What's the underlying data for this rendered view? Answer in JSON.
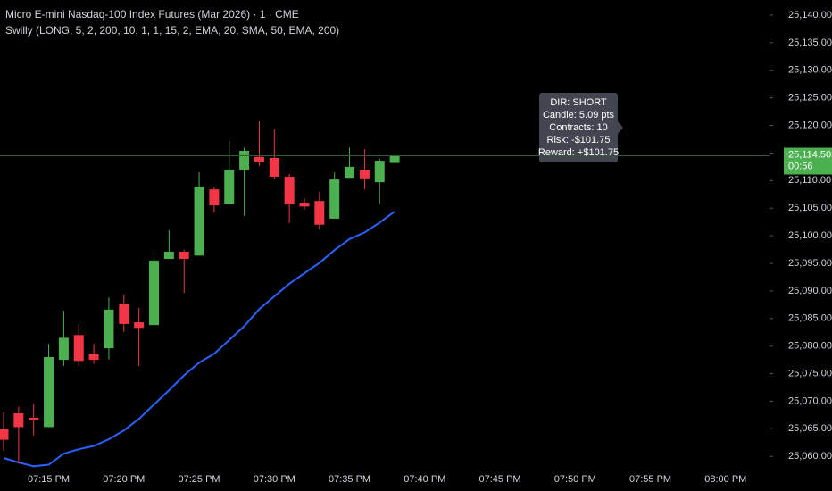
{
  "chart_data": {
    "type": "candlestick",
    "title": "Micro E-mini Nasdaq-100 Index Futures (Mar 2026) · 1 · CME",
    "subtitle": "Swilly (LONG, 5, 2, 200, 10, 1, 1, 15, 2, EMA, 20, SMA, 50, EMA, 200)",
    "categories": [
      null,
      null,
      null,
      "07:15 PM",
      null,
      null,
      null,
      null,
      "07:20 PM",
      null,
      null,
      null,
      null,
      "07:25 PM",
      null,
      null,
      null,
      null,
      "07:30 PM",
      null,
      null,
      null,
      null,
      "07:35 PM",
      null,
      null,
      null,
      null,
      "07:40 PM",
      null,
      null,
      null,
      null,
      "07:45 PM",
      null,
      null,
      null,
      null,
      "07:50 PM",
      null,
      null,
      null,
      null,
      "07:55 PM",
      null,
      null,
      null,
      null,
      "08:00 PM",
      null,
      null
    ],
    "open": [
      25065,
      25067.8,
      25067,
      25065.3,
      25077.5,
      25082,
      25078.6,
      25079.6,
      25087.7,
      25084.3,
      25083.8,
      25095.8,
      25097.1,
      25096.4,
      25108.4,
      25105.8,
      25112,
      25114.3,
      25114.1,
      25110.7,
      25106,
      25106.3,
      25103.1,
      25110.5,
      25112,
      25109.7,
      25113.2,
      null,
      null,
      null,
      null,
      null,
      null,
      null,
      null,
      null,
      null,
      null,
      null,
      null,
      null,
      null,
      null,
      null,
      null,
      null,
      null,
      null,
      null,
      null,
      null
    ],
    "high": [
      25068,
      25069,
      25069.5,
      25080.4,
      25086.4,
      25084,
      25080.4,
      25088.8,
      25089.3,
      25086.9,
      25097,
      25101,
      25097.5,
      25111.5,
      25108.8,
      25117.2,
      25116,
      25120.7,
      25119.3,
      25111.2,
      25106.8,
      25108,
      25111.5,
      25116,
      25115.7,
      25114,
      25114.5,
      null,
      null,
      null,
      null,
      null,
      null,
      null,
      null,
      null,
      null,
      null,
      null,
      null,
      null,
      null,
      null,
      null,
      null,
      null,
      null,
      null,
      null,
      null,
      null
    ],
    "low": [
      25061,
      25058.7,
      25063.8,
      25065.3,
      25076.4,
      25076.4,
      25076.8,
      25077.6,
      25082.5,
      25076.4,
      25083.8,
      25095.8,
      25089.6,
      25096.4,
      25104.2,
      25105.8,
      25103.6,
      25112.7,
      25110.4,
      25102.3,
      25104.7,
      25101.1,
      25103.1,
      25110.5,
      25108.4,
      25105.8,
      25113.2,
      null,
      null,
      null,
      null,
      null,
      null,
      null,
      null,
      null,
      null,
      null,
      null,
      null,
      null,
      null,
      null,
      null,
      null,
      null,
      null,
      null,
      null,
      null,
      null
    ],
    "close": [
      25063,
      25065.3,
      25066.5,
      25078,
      25081.5,
      25077.3,
      25077.5,
      25086.6,
      25084,
      25083.3,
      25095.5,
      25097.1,
      25095.8,
      25108.9,
      25105.5,
      25112,
      25115.4,
      25113.4,
      25110.7,
      25105.7,
      25105.3,
      25102,
      25110.2,
      25112.5,
      25110.4,
      25113.6,
      25114.5,
      null,
      null,
      null,
      null,
      null,
      null,
      null,
      null,
      null,
      null,
      null,
      null,
      null,
      null,
      null,
      null,
      null,
      null,
      null,
      null,
      null,
      null,
      null,
      null
    ],
    "up_color": "#4caf50",
    "down_color": "#f23645",
    "series": [
      {
        "color": "#2962ff",
        "values": [
          25059.7,
          25058.9,
          25058.2,
          25058.5,
          25060.5,
          25061.3,
          25061.9,
          25063.1,
          25064.7,
          25066.8,
          25069.4,
          25072.0,
          25074.7,
          25077.0,
          25078.6,
          25081.1,
          25083.6,
          25086.7,
          25089.0,
          25091.3,
          25093.2,
          25095.1,
          25097.4,
          25099.4,
          25100.6,
          25102.4,
          25104.4,
          null,
          null,
          null,
          null,
          null,
          null,
          null,
          null,
          null,
          null,
          null,
          null,
          null,
          null,
          null,
          null,
          null,
          null,
          null,
          null,
          null,
          null,
          null,
          null
        ]
      }
    ],
    "ylim": [
      25058.25,
      25142.75
    ],
    "yticks": [
      {
        "value": 25060,
        "label": "25,060.00"
      },
      {
        "value": 25065,
        "label": "25,065.00"
      },
      {
        "value": 25070,
        "label": "25,070.00"
      },
      {
        "value": 25075,
        "label": "25,075.00"
      },
      {
        "value": 25080,
        "label": "25,080.00"
      },
      {
        "value": 25085,
        "label": "25,085.00"
      },
      {
        "value": 25090,
        "label": "25,090.00"
      },
      {
        "value": 25095,
        "label": "25,095.00"
      },
      {
        "value": 25100,
        "label": "25,100.00"
      },
      {
        "value": 25105,
        "label": "25,105.00"
      },
      {
        "value": 25110,
        "label": "25,110.00"
      },
      {
        "value": 25115,
        "label": "25,115.00"
      },
      {
        "value": 25120,
        "label": "25,120.00"
      },
      {
        "value": 25125,
        "label": "25,125.00"
      },
      {
        "value": 25130,
        "label": "25,130.00"
      },
      {
        "value": 25135,
        "label": "25,135.00"
      },
      {
        "value": 25140,
        "label": "25,140.00"
      }
    ],
    "last_price": {
      "value": 25114.5,
      "label": "25,114.50"
    },
    "countdown": "00:56",
    "tooltip": [
      "DIR: SHORT",
      "Candle: 5.09 pts",
      "Contracts: 10",
      "Risk: -$101.75",
      "Reward: +$101.75"
    ]
  }
}
